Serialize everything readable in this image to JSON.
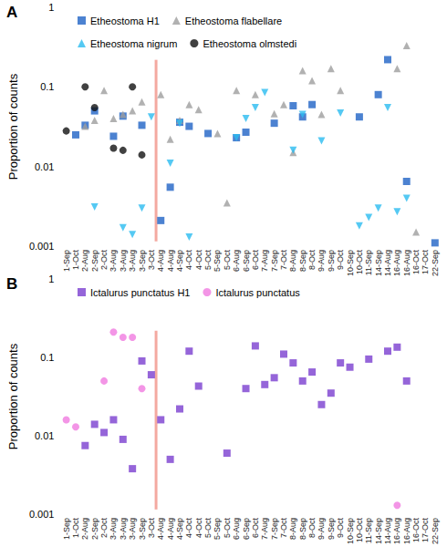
{
  "chart_data": [
    {
      "type": "scatter",
      "title": "A",
      "y_label": "Proportion of counts",
      "log": "y",
      "grid": false,
      "legend": "top",
      "categories": [
        "1-Sep",
        "1-Oct",
        "2-Aug",
        "2-Sep",
        "2-Oct",
        "3-Aug",
        "3-Aug",
        "3-Aug",
        "3-Sep",
        "3-Oct",
        "4-Aug",
        "4-Aug",
        "4-Sep",
        "4-Oct",
        "4-Oct",
        "5-Oct",
        "5-Sep",
        "5-Oct",
        "6-Aug",
        "6-Sep",
        "6-Oct",
        "7-Aug",
        "7-Sep",
        "7-Oct",
        "8-Aug",
        "8-Sep",
        "8-Oct",
        "9-Aug",
        "9-Sep",
        "9-Oct",
        "10-Sep",
        "10-Oct",
        "11-Sep",
        "14-Sep",
        "14-Aug",
        "16-Aug",
        "16-Aug",
        "16-Oct",
        "17-Oct",
        "22-Sep"
      ],
      "ylim": [
        0.001,
        1
      ],
      "yticks": [
        0.001,
        0.01,
        0.1,
        1
      ],
      "series": [
        {
          "name": "Etheostoma H1",
          "color": "#1f63c6",
          "marker": "square",
          "values": [
            null,
            0.025,
            0.033,
            0.05,
            null,
            0.024,
            0.043,
            null,
            0.033,
            null,
            0.0021,
            0.0055,
            0.036,
            0.032,
            null,
            0.026,
            null,
            null,
            0.023,
            0.027,
            null,
            null,
            0.035,
            null,
            0.058,
            0.042,
            0.06,
            null,
            null,
            null,
            null,
            0.042,
            null,
            0.08,
            0.22,
            null,
            0.0065,
            null,
            null,
            0.0011
          ]
        },
        {
          "name": "Etheostoma flabellare",
          "color": "#9e9e9e",
          "marker": "triangle",
          "values": [
            null,
            null,
            0.032,
            0.038,
            0.09,
            0.04,
            0.045,
            0.05,
            0.065,
            null,
            0.08,
            0.022,
            0.038,
            0.06,
            0.052,
            null,
            0.026,
            0.0035,
            0.09,
            null,
            0.08,
            null,
            0.046,
            0.06,
            0.015,
            0.16,
            0.12,
            0.045,
            0.17,
            0.09,
            null,
            null,
            null,
            null,
            null,
            0.17,
            0.33,
            0.0015,
            null,
            null
          ]
        },
        {
          "name": "Etheostoma nigrum",
          "color": "#2bbcf0",
          "marker": "triangle_down",
          "values": [
            null,
            null,
            null,
            0.0031,
            null,
            null,
            0.0017,
            0.0014,
            0.003,
            0.042,
            null,
            0.011,
            0.035,
            0.0013,
            null,
            null,
            null,
            null,
            0.023,
            0.04,
            0.055,
            0.085,
            null,
            null,
            0.016,
            0.045,
            null,
            0.021,
            null,
            0.047,
            null,
            0.0018,
            0.0023,
            0.003,
            0.055,
            0.0027,
            0.004,
            null,
            null,
            null
          ]
        },
        {
          "name": "Etheostoma olmstedi",
          "color": "#111111",
          "marker": "circle",
          "values": [
            0.028,
            null,
            0.1,
            0.055,
            null,
            0.017,
            0.016,
            0.1,
            0.014,
            null,
            null,
            null,
            null,
            null,
            null,
            null,
            null,
            null,
            null,
            null,
            null,
            null,
            null,
            null,
            null,
            null,
            null,
            null,
            null,
            null,
            null,
            null,
            null,
            null,
            null,
            null,
            null,
            null,
            null,
            null
          ]
        }
      ]
    },
    {
      "type": "scatter",
      "title": "B",
      "y_label": "Proportion of counts",
      "log": "y",
      "grid": false,
      "legend": "top",
      "categories": [
        "1-Sep",
        "1-Oct",
        "2-Aug",
        "2-Sep",
        "2-Oct",
        "3-Aug",
        "3-Aug",
        "3-Aug",
        "3-Sep",
        "3-Oct",
        "4-Aug",
        "4-Aug",
        "4-Sep",
        "4-Oct",
        "4-Oct",
        "5-Oct",
        "5-Sep",
        "5-Oct",
        "6-Aug",
        "6-Sep",
        "6-Oct",
        "7-Aug",
        "7-Sep",
        "7-Oct",
        "8-Aug",
        "8-Sep",
        "8-Oct",
        "9-Aug",
        "9-Sep",
        "9-Oct",
        "10-Sep",
        "10-Oct",
        "11-Sep",
        "14-Sep",
        "14-Aug",
        "16-Aug",
        "16-Aug",
        "16-Oct",
        "17-Oct",
        "22-Sep"
      ],
      "ylim": [
        0.001,
        1
      ],
      "yticks": [
        0.001,
        0.01,
        0.1,
        1
      ],
      "series": [
        {
          "name": "Ictalurus punctatus H1",
          "color": "#7b3fd0",
          "marker": "square",
          "values": [
            null,
            null,
            0.0075,
            0.014,
            0.011,
            0.016,
            0.009,
            0.0038,
            0.09,
            0.06,
            0.016,
            0.005,
            0.022,
            0.12,
            0.043,
            null,
            null,
            0.006,
            null,
            0.04,
            0.14,
            0.045,
            0.055,
            0.11,
            0.085,
            0.05,
            0.065,
            0.025,
            0.035,
            0.085,
            0.075,
            null,
            0.095,
            null,
            0.12,
            0.135,
            0.05,
            null,
            null,
            null
          ]
        },
        {
          "name": "Ictalurus punctatus",
          "color": "#f07ae0",
          "marker": "circle",
          "values": [
            0.016,
            0.013,
            null,
            null,
            0.05,
            0.21,
            0.18,
            0.18,
            0.04,
            null,
            null,
            null,
            null,
            null,
            null,
            null,
            null,
            null,
            null,
            null,
            null,
            null,
            null,
            null,
            null,
            null,
            null,
            null,
            null,
            null,
            null,
            null,
            null,
            null,
            null,
            0.0013,
            null,
            null,
            null,
            null
          ]
        }
      ]
    }
  ]
}
